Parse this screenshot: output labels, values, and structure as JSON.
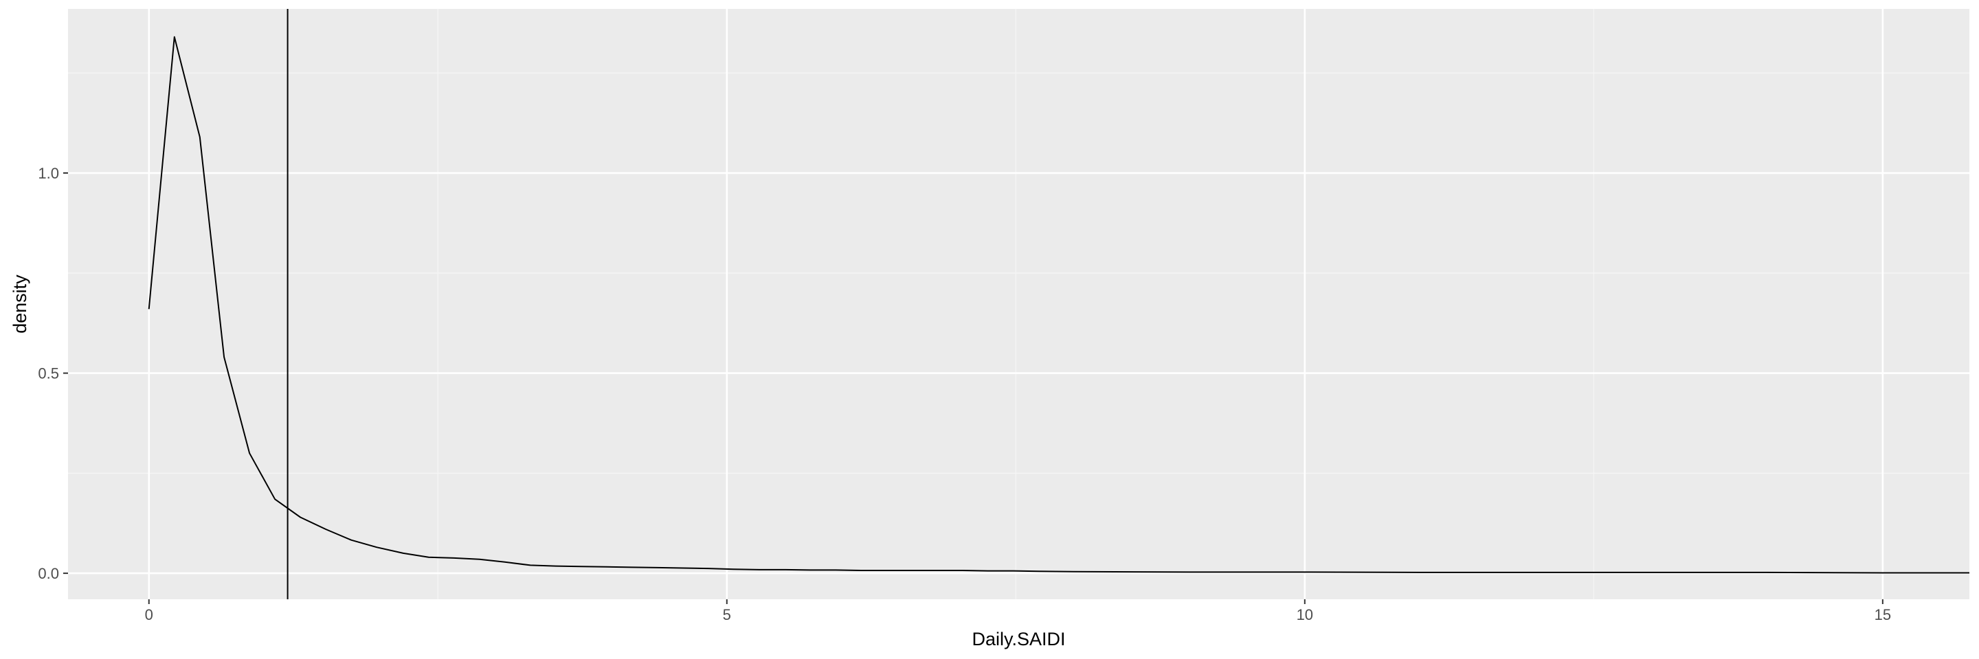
{
  "chart_data": {
    "type": "line",
    "title": "",
    "xlabel": "Daily.SAIDI",
    "ylabel": "density",
    "xlim": [
      -0.7,
      15.75
    ],
    "ylim": [
      -0.065,
      1.41
    ],
    "x_ticks": [
      0,
      5,
      10,
      15
    ],
    "x_tick_labels": [
      "0",
      "5",
      "10",
      "15"
    ],
    "y_ticks": [
      0.0,
      0.5,
      1.0
    ],
    "y_tick_labels": [
      "0.0",
      "0.5",
      "1.0"
    ],
    "grid": true,
    "vline": 1.2,
    "series": [
      {
        "x": [
          0,
          0.22,
          0.44,
          0.65,
          0.87,
          1.09,
          1.31,
          1.53,
          1.75,
          1.97,
          2.2,
          2.42,
          2.64,
          2.86,
          3.08,
          3.3,
          3.52,
          3.74,
          3.96,
          4.18,
          4.4,
          4.62,
          4.84,
          5.06,
          5.28,
          5.5,
          5.72,
          5.94,
          6.16,
          6.38,
          6.6,
          6.82,
          7.04,
          7.26,
          7.48,
          7.7,
          8.0,
          9.0,
          10.0,
          11.0,
          12.0,
          13.0,
          14.0,
          15.0,
          15.75
        ],
        "y": [
          0.66,
          1.34,
          1.09,
          0.54,
          0.3,
          0.185,
          0.14,
          0.11,
          0.083,
          0.065,
          0.05,
          0.04,
          0.038,
          0.035,
          0.028,
          0.02,
          0.018,
          0.017,
          0.016,
          0.015,
          0.014,
          0.013,
          0.012,
          0.01,
          0.009,
          0.009,
          0.008,
          0.008,
          0.007,
          0.007,
          0.007,
          0.007,
          0.007,
          0.006,
          0.006,
          0.005,
          0.004,
          0.003,
          0.003,
          0.002,
          0.002,
          0.002,
          0.002,
          0.001,
          0.001
        ]
      }
    ]
  }
}
